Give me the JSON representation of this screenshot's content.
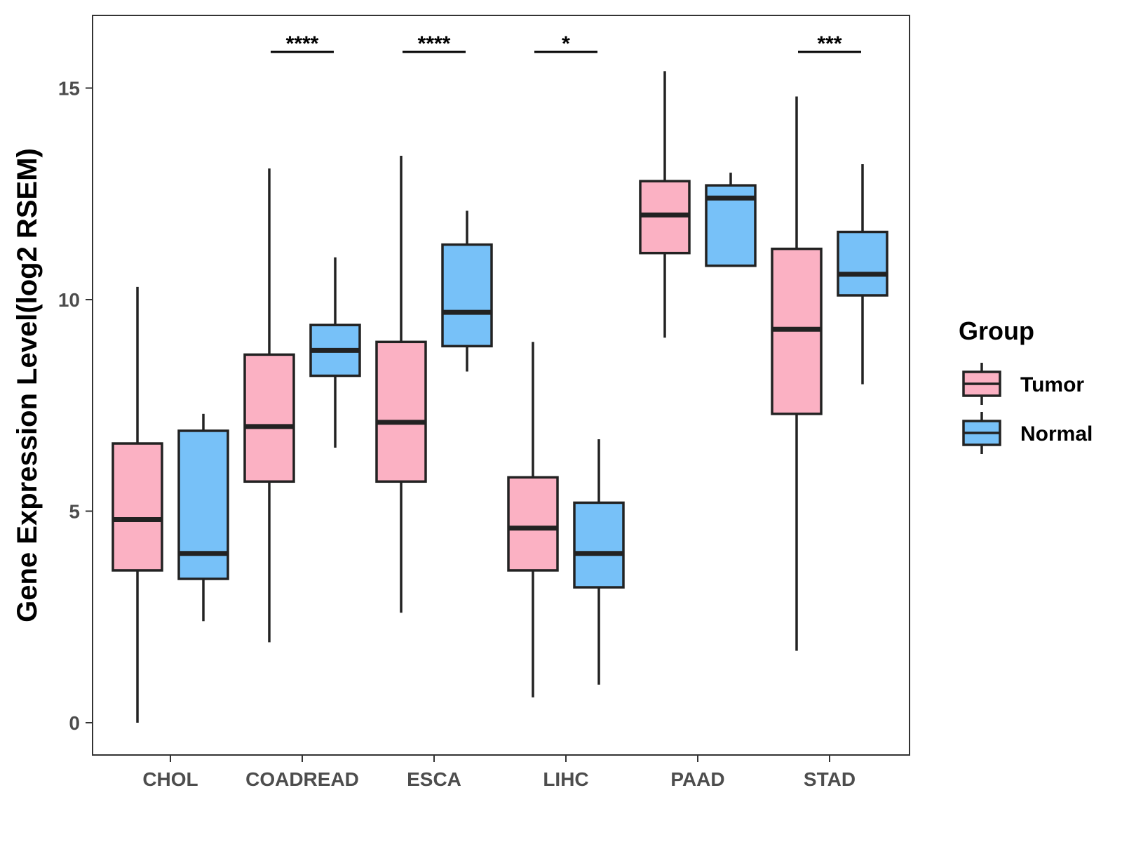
{
  "chart_data": {
    "type": "boxplot",
    "title": "",
    "xlabel": "",
    "ylabel": "Gene Expression Level(log2 RSEM)",
    "ylim": [
      -0.8,
      16.7
    ],
    "yticks": [
      0,
      5,
      10,
      15
    ],
    "categories": [
      "CHOL",
      "COADREAD",
      "ESCA",
      "LIHC",
      "PAAD",
      "STAD"
    ],
    "legend": {
      "title": "Group",
      "position": "right",
      "entries": [
        {
          "name": "Tumor",
          "color": "#fbb1c3"
        },
        {
          "name": "Normal",
          "color": "#77c1f8"
        }
      ]
    },
    "series": [
      {
        "name": "Tumor",
        "color": "#fbb1c3",
        "boxes": [
          {
            "min": 0.0,
            "q1": 3.6,
            "median": 4.8,
            "q3": 6.6,
            "max": 10.3
          },
          {
            "min": 1.9,
            "q1": 5.7,
            "median": 7.0,
            "q3": 8.7,
            "max": 13.1
          },
          {
            "min": 2.6,
            "q1": 5.7,
            "median": 7.1,
            "q3": 9.0,
            "max": 13.4
          },
          {
            "min": 0.6,
            "q1": 3.6,
            "median": 4.6,
            "q3": 5.8,
            "max": 9.0
          },
          {
            "min": 9.1,
            "q1": 11.1,
            "median": 12.0,
            "q3": 12.8,
            "max": 15.4
          },
          {
            "min": 1.7,
            "q1": 7.3,
            "median": 9.3,
            "q3": 11.2,
            "max": 14.8
          }
        ]
      },
      {
        "name": "Normal",
        "color": "#77c1f8",
        "boxes": [
          {
            "min": 2.4,
            "q1": 3.4,
            "median": 4.0,
            "q3": 6.9,
            "max": 7.3
          },
          {
            "min": 6.5,
            "q1": 8.2,
            "median": 8.8,
            "q3": 9.4,
            "max": 11.0
          },
          {
            "min": 8.3,
            "q1": 8.9,
            "median": 9.7,
            "q3": 11.3,
            "max": 12.1
          },
          {
            "min": 0.9,
            "q1": 3.2,
            "median": 4.0,
            "q3": 5.2,
            "max": 6.7
          },
          {
            "min": 10.8,
            "q1": 10.8,
            "median": 12.4,
            "q3": 12.7,
            "max": 13.0
          },
          {
            "min": 8.0,
            "q1": 10.1,
            "median": 10.6,
            "q3": 11.6,
            "max": 13.2
          }
        ]
      }
    ],
    "significance": [
      {
        "category": "CHOL",
        "label": ""
      },
      {
        "category": "COADREAD",
        "label": "****"
      },
      {
        "category": "ESCA",
        "label": "****"
      },
      {
        "category": "LIHC",
        "label": "*"
      },
      {
        "category": "PAAD",
        "label": ""
      },
      {
        "category": "STAD",
        "label": "***"
      }
    ]
  }
}
